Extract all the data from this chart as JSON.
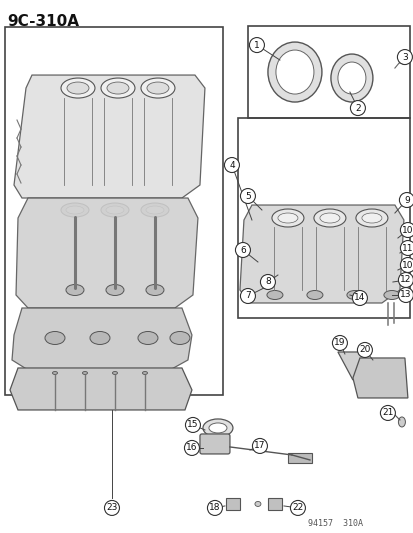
{
  "title": "9C-310A",
  "footer": "94157  310A",
  "bg_color": "#ffffff",
  "fig_width": 4.14,
  "fig_height": 5.33,
  "dpi": 100,
  "title_fontsize": 11,
  "line_color": "#444444",
  "box_edge_color": "#444444",
  "label_color": "#111111"
}
